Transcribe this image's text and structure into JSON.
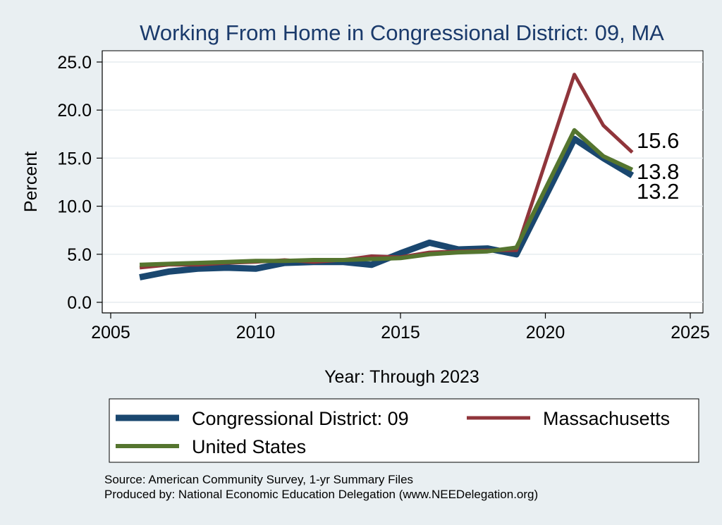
{
  "chart_data": {
    "type": "line",
    "title": "Working From Home in Congressional District: 09, MA",
    "xlabel": "Year: Through 2023",
    "ylabel": "Percent",
    "xlim": [
      2005,
      2025
    ],
    "ylim": [
      0,
      25
    ],
    "xticks": [
      2005,
      2010,
      2015,
      2020,
      2025
    ],
    "yticks": [
      0.0,
      5.0,
      10.0,
      15.0,
      20.0,
      25.0
    ],
    "ytick_labels": [
      "0.0",
      "5.0",
      "10.0",
      "15.0",
      "20.0",
      "25.0"
    ],
    "x": [
      2006,
      2007,
      2008,
      2009,
      2010,
      2011,
      2012,
      2013,
      2014,
      2015,
      2016,
      2017,
      2018,
      2019,
      2021,
      2022,
      2023
    ],
    "series": [
      {
        "name": "Congressional District: 09",
        "color": "#1a476f",
        "values": [
          2.6,
          3.2,
          3.5,
          3.6,
          3.5,
          4.1,
          4.2,
          4.2,
          3.9,
          5.1,
          6.2,
          5.5,
          5.6,
          5.0,
          17.0,
          15.0,
          13.2
        ],
        "end_label": "13.2"
      },
      {
        "name": "Massachusetts",
        "color": "#90353b",
        "values": [
          3.6,
          3.9,
          3.9,
          4.1,
          4.2,
          4.4,
          4.2,
          4.4,
          4.8,
          4.7,
          5.2,
          5.3,
          5.4,
          5.4,
          23.7,
          18.4,
          15.6
        ],
        "end_label": "15.6"
      },
      {
        "name": "United States",
        "color": "#55752f",
        "values": [
          3.9,
          4.0,
          4.1,
          4.2,
          4.3,
          4.3,
          4.4,
          4.4,
          4.5,
          4.6,
          5.0,
          5.2,
          5.3,
          5.7,
          17.9,
          15.2,
          13.8
        ],
        "end_label": "13.8"
      }
    ],
    "grid": true,
    "legend": "bottom"
  },
  "footer": {
    "source": "Source: American Community Survey, 1-yr Summary Files",
    "produced": "Produced by: National Economic Education Delegation (www.NEEDelegation.org)"
  }
}
